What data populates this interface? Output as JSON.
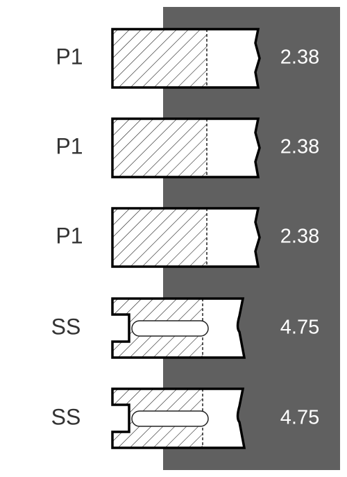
{
  "rows": [
    {
      "label": "P1",
      "value": "2.38"
    },
    {
      "label": "P1",
      "value": "2.38"
    },
    {
      "label": "P1",
      "value": "2.38"
    },
    {
      "label": "SS",
      "value": "4.75"
    },
    {
      "label": "SS",
      "value": "4.75"
    }
  ]
}
